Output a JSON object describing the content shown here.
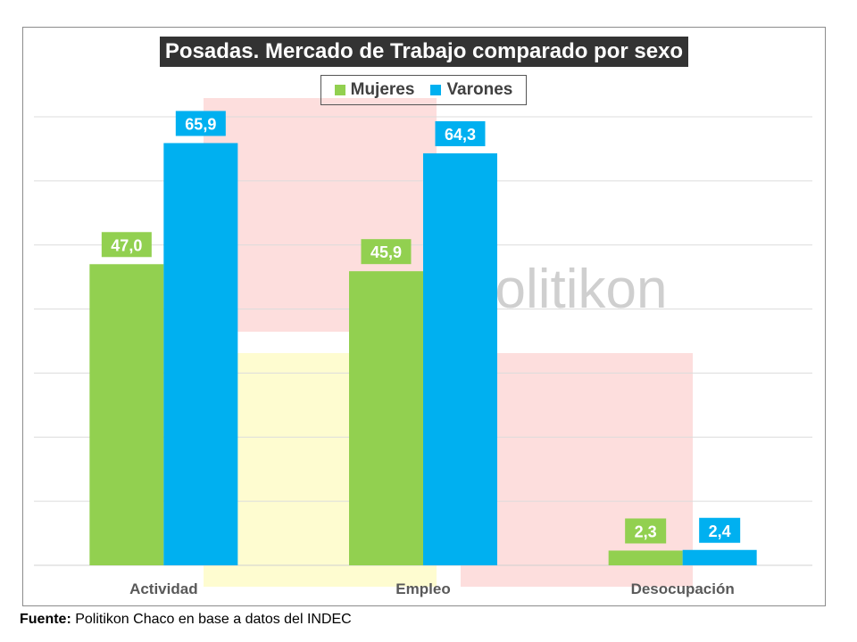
{
  "chart_data": {
    "type": "bar",
    "title": "Posadas. Mercado de Trabajo comparado por sexo",
    "categories": [
      "Actividad",
      "Empleo",
      "Desocupación"
    ],
    "series": [
      {
        "name": "Mujeres",
        "color": "#92d050",
        "values": [
          47.0,
          45.9,
          2.3
        ],
        "labels": [
          "47,0",
          "45,9",
          "2,3"
        ]
      },
      {
        "name": "Varones",
        "color": "#00b0f0",
        "values": [
          65.9,
          64.3,
          2.4
        ],
        "labels": [
          "65,9",
          "64,3",
          "2,4"
        ]
      }
    ],
    "ylim": [
      0,
      70
    ],
    "ytick_step": 10,
    "grid": true,
    "legend_position": "top-center",
    "xlabel": "",
    "ylabel": ""
  },
  "watermark": "politikon",
  "footer": {
    "bold": "Fuente:",
    "text": " Politikon Chaco en base a datos del INDEC"
  }
}
